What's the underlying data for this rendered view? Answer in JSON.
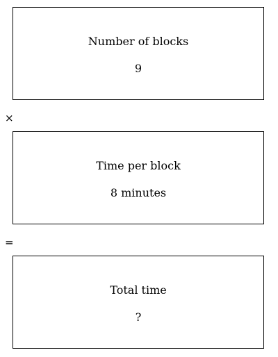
{
  "boxes": [
    {
      "label": "Number of blocks",
      "value": "9"
    },
    {
      "label": "Time per block",
      "value": "8 minutes"
    },
    {
      "label": "Total time",
      "value": "?"
    }
  ],
  "operators": [
    "×",
    "="
  ]
}
